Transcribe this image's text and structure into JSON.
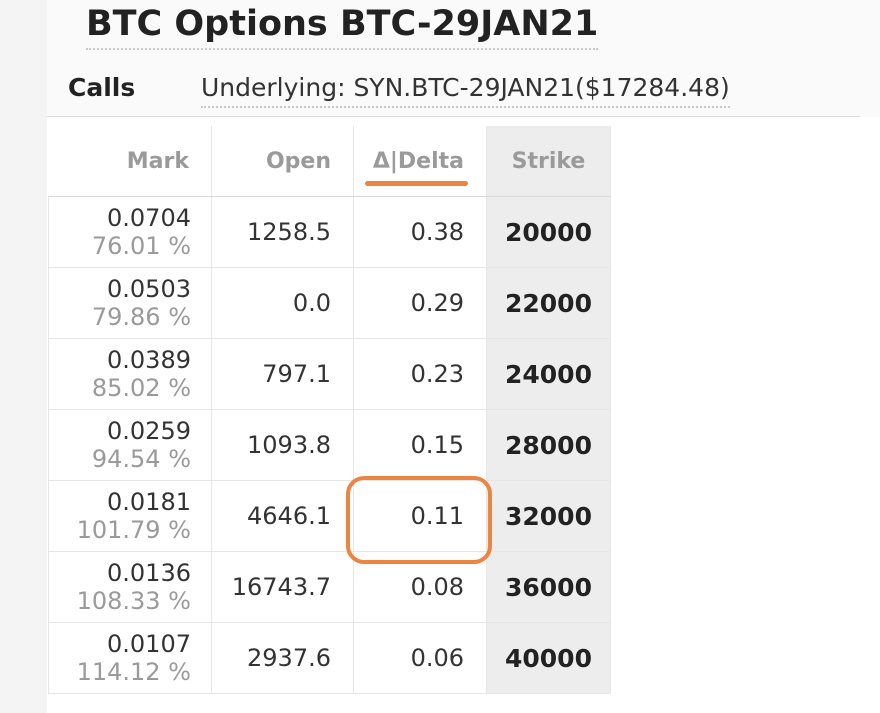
{
  "header": {
    "title": "BTC Options BTC-29JAN21",
    "calls_label": "Calls",
    "underlying": "Underlying: SYN.BTC-29JAN21($17284.48)"
  },
  "table": {
    "columns": {
      "mark": "Mark",
      "open": "Open",
      "delta": "Δ|Delta",
      "strike": "Strike"
    },
    "rows": [
      {
        "mark": "0.0704",
        "iv": "76.01 %",
        "open": "1258.5",
        "delta": "0.38",
        "strike": "20000"
      },
      {
        "mark": "0.0503",
        "iv": "79.86 %",
        "open": "0.0",
        "delta": "0.29",
        "strike": "22000"
      },
      {
        "mark": "0.0389",
        "iv": "85.02 %",
        "open": "797.1",
        "delta": "0.23",
        "strike": "24000"
      },
      {
        "mark": "0.0259",
        "iv": "94.54 %",
        "open": "1093.8",
        "delta": "0.15",
        "strike": "28000"
      },
      {
        "mark": "0.0181",
        "iv": "101.79 %",
        "open": "4646.1",
        "delta": "0.11",
        "strike": "32000"
      },
      {
        "mark": "0.0136",
        "iv": "108.33 %",
        "open": "16743.7",
        "delta": "0.08",
        "strike": "36000"
      },
      {
        "mark": "0.0107",
        "iv": "114.12 %",
        "open": "2937.6",
        "delta": "0.06",
        "strike": "40000"
      }
    ]
  },
  "annotations": {
    "accent_color": "#ee8442",
    "highlighted_row": 4,
    "highlighted_column": "delta"
  }
}
